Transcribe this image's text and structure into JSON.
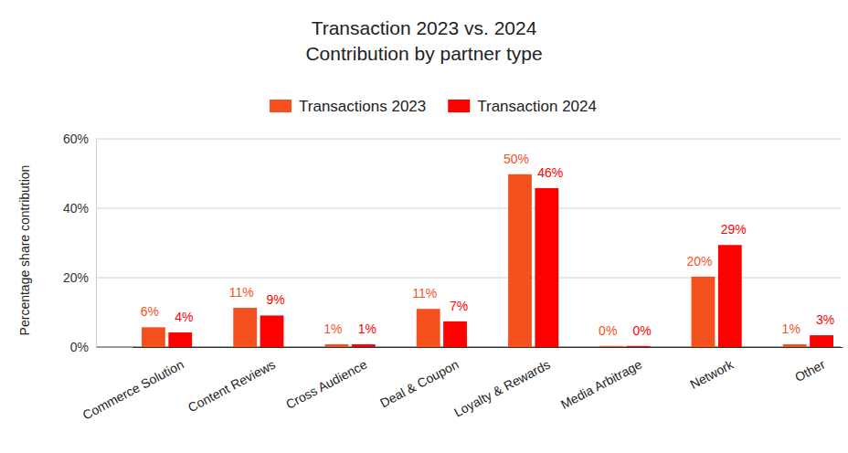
{
  "chart_data": {
    "type": "bar",
    "title": "Transaction 2023 vs. 2024",
    "subtitle": "Contribution by partner type",
    "y_label": "Percentage share contribution",
    "categories": [
      "Commerce Solution",
      "Content Reviews",
      "Cross Audience",
      "Deal & Coupon",
      "Loyalty & Rewards",
      "Media Arbitrage",
      "Network",
      "Other"
    ],
    "series": [
      {
        "name": "Transactions 2023",
        "color": "#f4511e",
        "values": [
          5.7,
          11.3,
          0.8,
          11,
          49.8,
          0.3,
          20.3,
          0.8
        ],
        "value_labels": [
          "6%",
          "11%",
          "1%",
          "11%",
          "50%",
          "0%",
          "20%",
          "1%"
        ]
      },
      {
        "name": "Transaction 2024",
        "color": "#ff0000",
        "values": [
          4.2,
          9.1,
          0.8,
          7.4,
          45.8,
          0.3,
          29.4,
          3.4
        ],
        "value_labels": [
          "4%",
          "9%",
          "1%",
          "7%",
          "46%",
          "0%",
          "29%",
          "3%"
        ]
      }
    ],
    "ylim": [
      0,
      60
    ],
    "yticks": [
      {
        "value": 0,
        "label": "0%"
      },
      {
        "value": 20,
        "label": "20%"
      },
      {
        "value": 40,
        "label": "40%"
      },
      {
        "value": 60,
        "label": "60%"
      }
    ],
    "grid": true,
    "legend": "top",
    "data_labels": true
  }
}
